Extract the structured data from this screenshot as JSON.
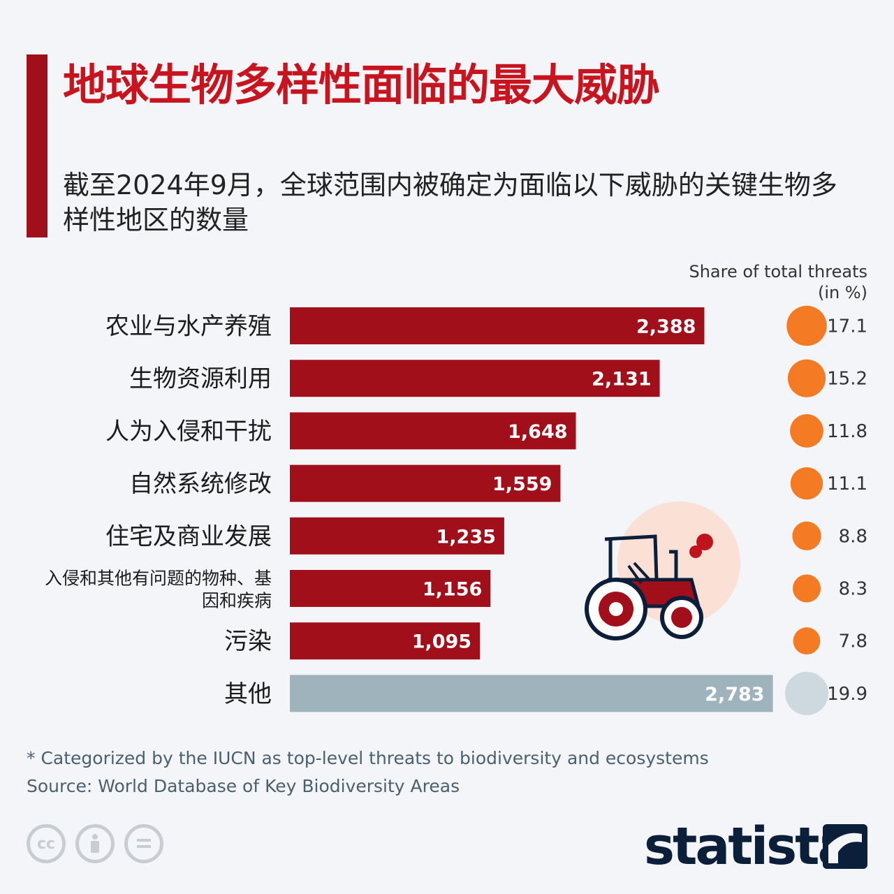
{
  "header": {
    "title": "地球生物多样性面临的最大威胁",
    "subtitle": "截至2024年9月，全球范围内被确定为面临以下威胁的关键生物多样性地区的数量"
  },
  "share_header": "Share of total threats\n(in %)",
  "colors": {
    "bar_primary": "#a10f1a",
    "bar_other": "#9fb3bd",
    "bubble_primary": "#f57a24",
    "bubble_other": "#cdd9df",
    "title": "#c7141f"
  },
  "chart_data": {
    "type": "bar",
    "orientation": "horizontal",
    "categories": [
      "农业与水产养殖",
      "生物资源利用",
      "人为入侵和干扰",
      "自然系统修改",
      "住宅及商业发展",
      "入侵和其他有问题的物种、基因和疾病",
      "污染",
      "其他"
    ],
    "values": [
      2388,
      2131,
      1648,
      1559,
      1235,
      1156,
      1095,
      2783
    ],
    "value_labels": [
      "2,388",
      "2,131",
      "1,648",
      "1,559",
      "1,235",
      "1,156",
      "1,095",
      "2,783"
    ],
    "share_percent": [
      17.1,
      15.2,
      11.8,
      11.1,
      8.8,
      8.3,
      7.8,
      19.9
    ],
    "share_labels": [
      "17.1",
      "15.2",
      "11.8",
      "11.1",
      "8.8",
      "8.3",
      "7.8",
      "19.9"
    ],
    "highlight_last_as_other": true
  },
  "footnote": {
    "note": "* Categorized by the IUCN as top-level threats to biodiversity and ecosystems",
    "source": "Source: World Database of Key Biodiversity Areas"
  },
  "license_icons": [
    "cc-icon",
    "attribution-icon",
    "no-derivatives-icon"
  ],
  "brand": "statista",
  "illustration": "tractor-icon"
}
